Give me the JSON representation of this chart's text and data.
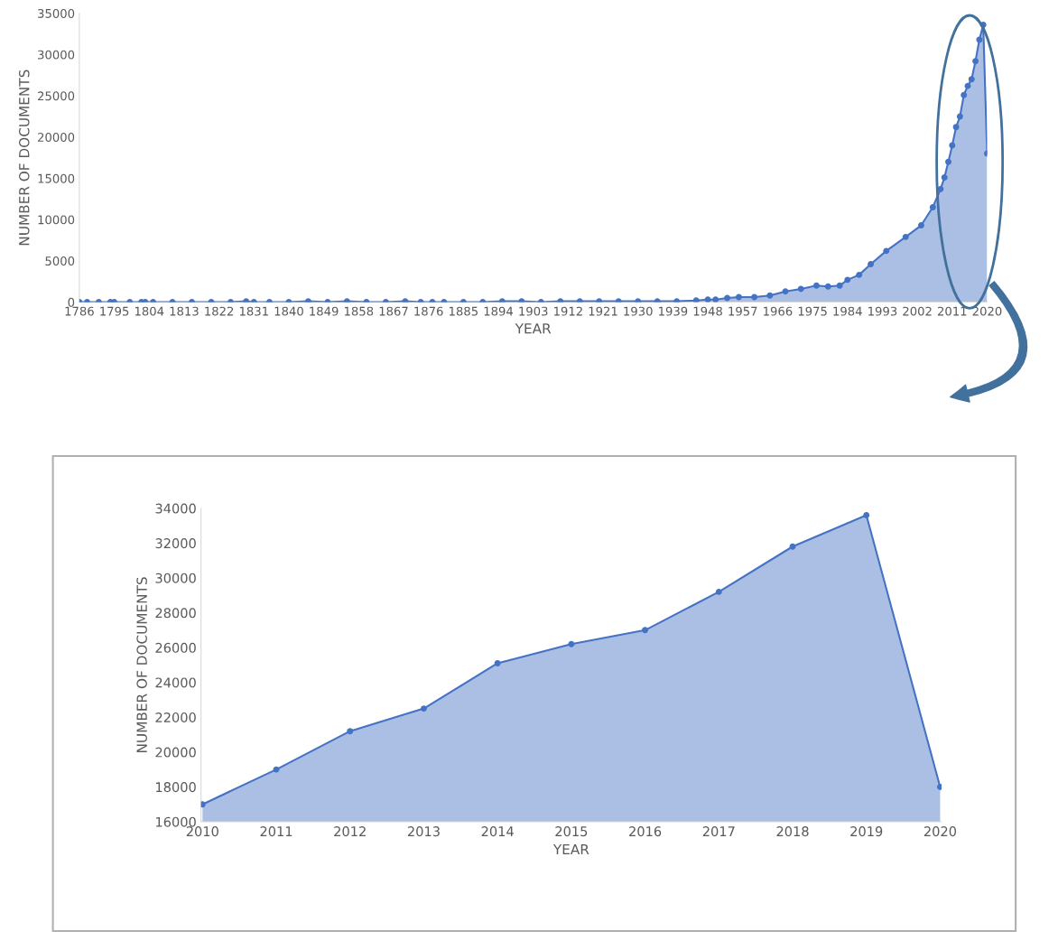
{
  "chart_data": [
    {
      "type": "area",
      "xlabel": "YEAR",
      "ylabel": "NUMBER OF DOCUMENTS",
      "marker": "circle",
      "grid": false,
      "xlim": [
        1786,
        2020
      ],
      "ylim": [
        0,
        35000
      ],
      "xticks": [
        1786,
        1795,
        1804,
        1813,
        1822,
        1831,
        1840,
        1849,
        1858,
        1867,
        1876,
        1885,
        1894,
        1903,
        1912,
        1921,
        1930,
        1939,
        1948,
        1957,
        1966,
        1975,
        1984,
        1993,
        2002,
        2011,
        2020
      ],
      "yticks": [
        0,
        5000,
        10000,
        15000,
        20000,
        25000,
        30000,
        35000
      ],
      "x": [
        1786,
        1788,
        1791,
        1794,
        1795,
        1799,
        1802,
        1803,
        1805,
        1810,
        1815,
        1820,
        1825,
        1829,
        1831,
        1835,
        1840,
        1845,
        1850,
        1855,
        1860,
        1865,
        1870,
        1874,
        1877,
        1880,
        1885,
        1890,
        1895,
        1900,
        1905,
        1910,
        1915,
        1920,
        1925,
        1930,
        1935,
        1940,
        1945,
        1948,
        1950,
        1953,
        1956,
        1960,
        1964,
        1968,
        1972,
        1976,
        1979,
        1982,
        1984,
        1987,
        1990,
        1994,
        1999,
        2003,
        2006,
        2008,
        2009,
        2010,
        2011,
        2012,
        2013,
        2014,
        2015,
        2016,
        2017,
        2018,
        2019,
        2020
      ],
      "series": [
        {
          "color": "#4472c4",
          "values": [
            0,
            0,
            0,
            0,
            0,
            0,
            0,
            0,
            0,
            0,
            0,
            0,
            0,
            100,
            0,
            0,
            0,
            100,
            0,
            100,
            0,
            0,
            100,
            0,
            0,
            0,
            0,
            0,
            100,
            100,
            0,
            100,
            100,
            100,
            100,
            100,
            100,
            100,
            200,
            300,
            300,
            500,
            600,
            600,
            800,
            1300,
            1600,
            2000,
            1900,
            2000,
            2700,
            3300,
            4600,
            6200,
            7900,
            9300,
            11500,
            13700,
            15100,
            17000,
            19000,
            21200,
            22500,
            25100,
            26200,
            27000,
            29200,
            31800,
            33600,
            18000
          ]
        }
      ]
    },
    {
      "type": "area",
      "xlabel": "YEAR",
      "ylabel": "NUMBER OF DOCUMENTS",
      "marker": "circle",
      "grid": false,
      "ylim": [
        16000,
        34000
      ],
      "yticks": [
        16000,
        18000,
        20000,
        22000,
        24000,
        26000,
        28000,
        30000,
        32000,
        34000
      ],
      "categories": [
        "2010",
        "2011",
        "2012",
        "2013",
        "2014",
        "2015",
        "2016",
        "2017",
        "2018",
        "2019",
        "2020"
      ],
      "series": [
        {
          "color": "#4472c4",
          "values": [
            17000,
            19000,
            21200,
            22500,
            25100,
            26200,
            27000,
            29200,
            31800,
            33600,
            18000
          ]
        }
      ]
    }
  ]
}
